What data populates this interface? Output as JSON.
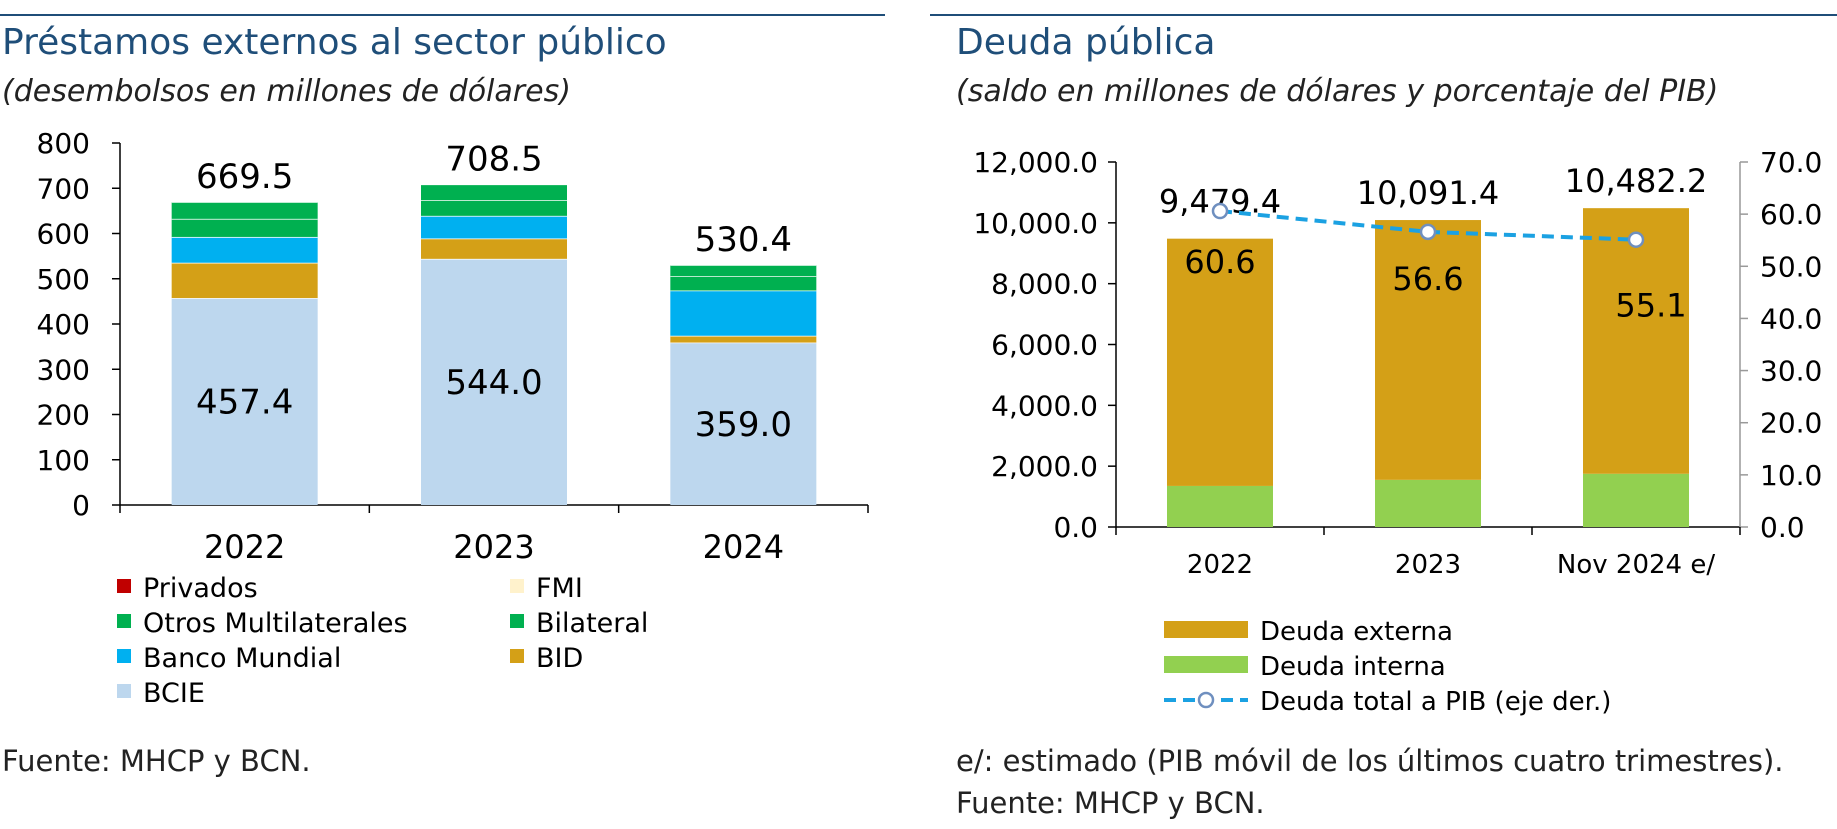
{
  "left": {
    "title": "Préstamos externos al sector público",
    "subtitle": "(desembolsos en millones de dólares)",
    "source": "Fuente: MHCP y BCN.",
    "chart_data": {
      "type": "bar",
      "stacked": true,
      "categories": [
        "2022",
        "2023",
        "2024"
      ],
      "ylim": [
        0,
        800
      ],
      "yticks": [
        "0",
        "100",
        "200",
        "300",
        "400",
        "500",
        "600",
        "700",
        "800"
      ],
      "series": [
        {
          "name": "BCIE",
          "color": "#bdd7ee",
          "values": [
            457.4,
            544.0,
            359.0
          ]
        },
        {
          "name": "BID",
          "color": "#d4a017",
          "values": [
            78,
            45,
            15
          ]
        },
        {
          "name": "Banco Mundial",
          "color": "#00b0f0",
          "values": [
            57,
            50,
            100
          ]
        },
        {
          "name": "Bilateral",
          "color": "#00b050",
          "values": [
            40,
            35,
            32
          ]
        },
        {
          "name": "Otros Multilaterales",
          "color": "#00b050",
          "values": [
            37.1,
            34.5,
            24.4
          ]
        },
        {
          "name": "FMI",
          "color": "#fff2cc",
          "values": [
            0,
            0,
            0
          ]
        },
        {
          "name": "Privados",
          "color": "#c00000",
          "values": [
            0,
            0,
            0
          ]
        }
      ],
      "inner_labels": [
        "457.4",
        "544.0",
        "359.0"
      ],
      "total_labels": [
        "669.5",
        "708.5",
        "530.4"
      ],
      "legend": [
        {
          "name": "Privados",
          "color": "#c00000"
        },
        {
          "name": "FMI",
          "color": "#fff2cc"
        },
        {
          "name": "Otros Multilaterales",
          "color": "#00b050"
        },
        {
          "name": "Bilateral",
          "color": "#00b050"
        },
        {
          "name": "Banco Mundial",
          "color": "#00b0f0"
        },
        {
          "name": "BID",
          "color": "#d4a017"
        },
        {
          "name": "BCIE",
          "color": "#bdd7ee"
        }
      ]
    }
  },
  "right": {
    "title": "Deuda pública",
    "subtitle": "(saldo en millones de dólares y porcentaje del PIB)",
    "note": "e/: estimado (PIB móvil de los últimos cuatro trimestres).",
    "source": "Fuente: MHCP y BCN.",
    "chart_data": {
      "type": "bar",
      "stacked": true,
      "categories": [
        "2022",
        "2023",
        "Nov 2024 e/"
      ],
      "ylim": [
        0,
        12000
      ],
      "yticks": [
        "0.0",
        "2,000.0",
        "4,000.0",
        "6,000.0",
        "8,000.0",
        "10,000.0",
        "12,000.0"
      ],
      "y2lim": [
        0,
        70
      ],
      "y2ticks": [
        "0.0",
        "10.0",
        "20.0",
        "30.0",
        "40.0",
        "50.0",
        "60.0",
        "70.0"
      ],
      "series": [
        {
          "name": "Deuda interna",
          "color": "#92d050",
          "values": [
            1350,
            1550,
            1750
          ]
        },
        {
          "name": "Deuda externa",
          "color": "#d4a017",
          "values": [
            8129.4,
            8541.4,
            8732.2
          ]
        }
      ],
      "total_labels": [
        "9,479.4",
        "10,091.4",
        "10,482.2"
      ],
      "line": {
        "name": "Deuda total a PIB (eje der.)",
        "color": "#1ba1e2",
        "values": [
          60.6,
          56.6,
          55.1
        ],
        "labels": [
          "60.6",
          "56.6",
          "55.1"
        ]
      },
      "legend": [
        {
          "name": "Deuda externa",
          "color": "#d4a017"
        },
        {
          "name": "Deuda interna",
          "color": "#92d050"
        },
        {
          "name": "Deuda total a PIB (eje der.)",
          "color": "#1ba1e2"
        }
      ]
    }
  }
}
